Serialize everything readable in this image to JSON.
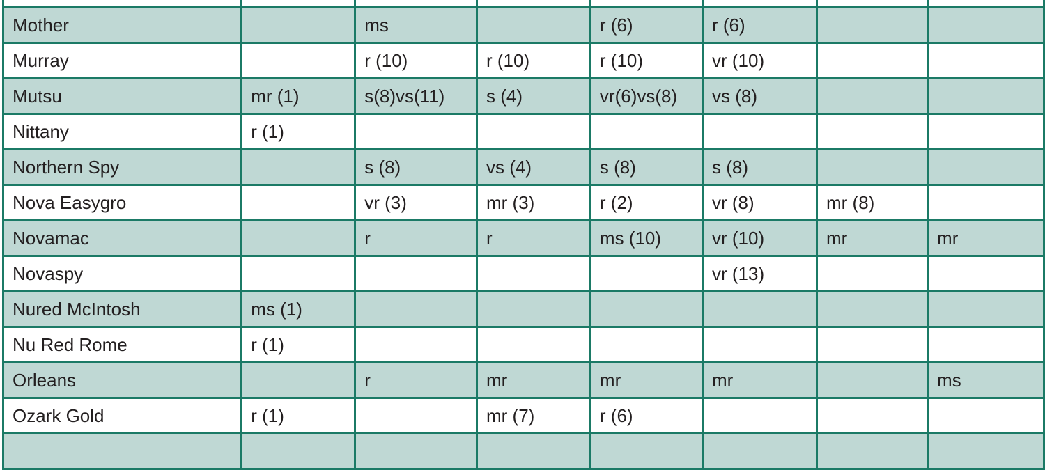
{
  "table": {
    "rows": [
      [
        "",
        "",
        "",
        "",
        "",
        "",
        "",
        ""
      ],
      [
        "Mother",
        "",
        "ms",
        "",
        "r (6)",
        "r (6)",
        "",
        ""
      ],
      [
        "Murray",
        "",
        "r (10)",
        "r (10)",
        "r (10)",
        "vr (10)",
        "",
        ""
      ],
      [
        "Mutsu",
        "mr (1)",
        "s(8)vs(11)",
        "s (4)",
        "vr(6)vs(8)",
        "vs (8)",
        "",
        ""
      ],
      [
        "Nittany",
        "r (1)",
        "",
        "",
        "",
        "",
        "",
        ""
      ],
      [
        "Northern Spy",
        "",
        "s (8)",
        "vs (4)",
        "s (8)",
        "s (8)",
        "",
        ""
      ],
      [
        "Nova Easygro",
        "",
        "vr (3)",
        "mr (3)",
        "r (2)",
        "vr (8)",
        "mr (8)",
        ""
      ],
      [
        "Novamac",
        "",
        "r",
        "r",
        "ms (10)",
        "vr (10)",
        "mr",
        "mr"
      ],
      [
        "Novaspy",
        "",
        "",
        "",
        "",
        "vr (13)",
        "",
        ""
      ],
      [
        "Nured McIntosh",
        "ms (1)",
        "",
        "",
        "",
        "",
        "",
        ""
      ],
      [
        "Nu Red Rome",
        "r (1)",
        "",
        "",
        "",
        "",
        "",
        ""
      ],
      [
        "Orleans",
        "",
        "r",
        "mr",
        "mr",
        "mr",
        "",
        "ms"
      ],
      [
        "Ozark Gold",
        "r (1)",
        "",
        "mr (7)",
        "r (6)",
        "",
        "",
        ""
      ],
      [
        "",
        "",
        "",
        "",
        "",
        "",
        "",
        ""
      ]
    ],
    "colors": {
      "border": "#1b7a66",
      "shaded_row": "#bfd8d4",
      "text": "#231f20"
    }
  }
}
